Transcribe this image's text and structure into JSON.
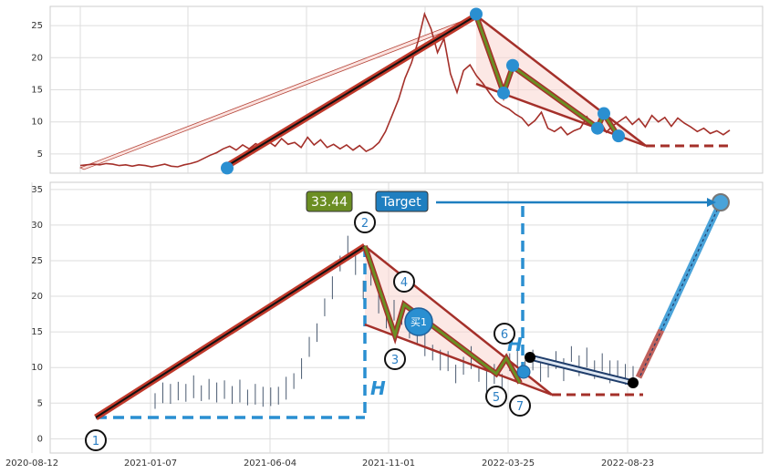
{
  "chart_data": [
    {
      "type": "line",
      "panel": "top",
      "ylim": [
        2,
        28
      ],
      "yticks": [
        5,
        10,
        15,
        20,
        25
      ],
      "grid": true,
      "series": [
        {
          "values_x": [
            0,
            1,
            2,
            3,
            4,
            5,
            6,
            7,
            8,
            9,
            10,
            11,
            12,
            13,
            14,
            15,
            16,
            17,
            18,
            19,
            20,
            21,
            22,
            23,
            24,
            25,
            26,
            27,
            28,
            29,
            30,
            31,
            32,
            33,
            34,
            35,
            36,
            37,
            38,
            39,
            40,
            41,
            42,
            43,
            44,
            45,
            46,
            47,
            48,
            49,
            50,
            51,
            52,
            53,
            54,
            55,
            56,
            57,
            58,
            59,
            60,
            61,
            62,
            63,
            64,
            65,
            66,
            67,
            68,
            69,
            70,
            71,
            72,
            73,
            74,
            75,
            76,
            77,
            78,
            79,
            80,
            81,
            82,
            83,
            84,
            85,
            86,
            87,
            88,
            89,
            90,
            91,
            92,
            93,
            94,
            95,
            96,
            97,
            98,
            99,
            100
          ],
          "values": [
            3.2,
            3.3,
            3.4,
            3.3,
            3.5,
            3.4,
            3.2,
            3.3,
            3.1,
            3.3,
            3.2,
            3.0,
            3.2,
            3.4,
            3.1,
            3.0,
            3.3,
            3.5,
            3.8,
            4.3,
            4.8,
            5.2,
            5.8,
            6.2,
            5.6,
            6.4,
            5.8,
            6.6,
            6.1,
            6.9,
            6.2,
            7.4,
            6.5,
            6.8,
            6.0,
            7.6,
            6.4,
            7.2,
            6.0,
            6.5,
            5.8,
            6.4,
            5.6,
            6.3,
            5.4,
            5.9,
            6.8,
            8.5,
            11.0,
            13.5,
            16.8,
            19.2,
            22.5,
            26.8,
            24.5,
            20.8,
            23.0,
            17.5,
            14.6,
            18.0,
            18.9,
            17.2,
            16.0,
            14.5,
            13.2,
            12.5,
            12.0,
            11.2,
            10.6,
            9.4,
            10.2,
            11.5,
            9.0,
            8.5,
            9.2,
            8.0,
            8.6,
            9.0,
            10.8,
            9.0,
            10.2,
            8.4,
            9.4,
            10.1,
            10.8,
            9.6,
            10.5,
            9.2,
            11.0,
            10.0,
            10.7,
            9.3,
            10.6,
            9.8,
            9.2,
            8.5,
            9.0,
            8.2,
            8.6,
            8.0,
            8.7
          ]
        }
      ],
      "markers": [
        2.8,
        26.8,
        14.5,
        18.8,
        11.3,
        9.0,
        7.8
      ],
      "channel": {
        "upper": [
          26.8,
          6.2
        ],
        "lower": [
          16.0,
          6.2
        ],
        "extension_level": 6.2
      }
    },
    {
      "type": "line",
      "panel": "bottom",
      "ylim": [
        -2,
        36
      ],
      "yticks": [
        0,
        5,
        10,
        15,
        20,
        25,
        30,
        35
      ],
      "xticklabels": [
        "2020-08-12",
        "2021-01-07",
        "2021-06-04",
        "2021-11-01",
        "2022-03-25",
        "2022-08-23"
      ],
      "grid": true,
      "price_label": "33.44",
      "target_label": "Target",
      "buy_label": "买1",
      "height_label": "H",
      "wave_points": [
        {
          "label": "1",
          "value": 2.8
        },
        {
          "label": "2",
          "value": 27.0
        },
        {
          "label": "3",
          "value": 14.5
        },
        {
          "label": "4",
          "value": 18.8
        },
        {
          "label": "5",
          "value": 9.0
        },
        {
          "label": "6",
          "value": 11.2
        },
        {
          "label": "7",
          "value": 7.8
        }
      ],
      "series": [
        {
          "values": [
            5.2,
            6.4,
            5.9,
            6.8,
            6.2,
            7.1,
            6.3,
            6.9,
            6.1,
            7.0,
            5.9,
            6.5,
            5.7,
            6.2,
            5.5,
            6.0,
            5.8,
            6.9,
            8.0,
            9.8,
            12.5,
            15.0,
            18.2,
            21.0,
            24.5,
            27.0,
            24.0,
            21.0,
            22.5,
            19.0,
            16.5,
            18.0,
            17.0,
            15.5,
            14.2,
            13.0,
            12.0,
            11.0,
            10.5,
            9.2,
            10.0,
            11.2,
            9.0,
            8.0,
            8.7,
            7.9,
            10.5,
            11.5,
            9.8,
            11.0,
            9.0,
            10.0,
            10.8,
            9.5,
            11.8,
            10.2,
            11.0,
            9.8,
            10.5,
            9.2,
            9.8,
            9.0,
            8.4
          ]
        }
      ],
      "target_value": 33.44,
      "stop_level": 6.2
    }
  ]
}
